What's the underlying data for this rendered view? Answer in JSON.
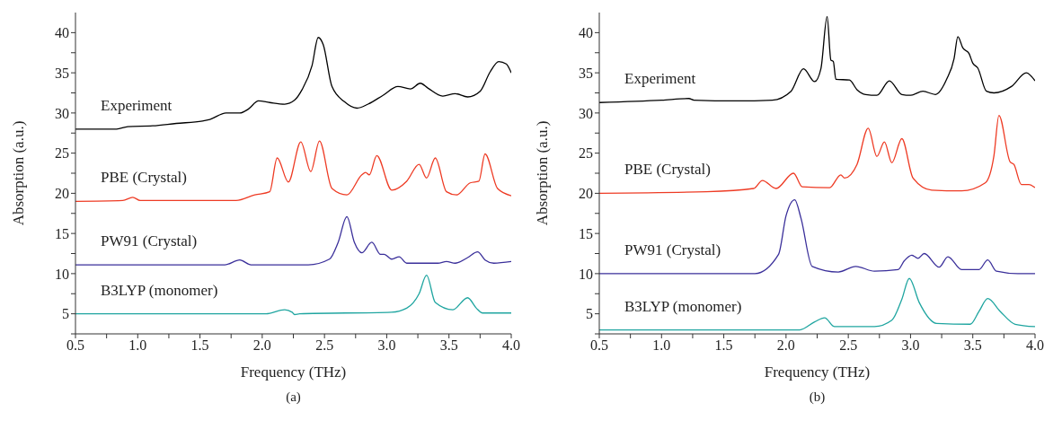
{
  "chart_data": [
    {
      "type": "line",
      "xlabel": "Frequency (THz)",
      "ylabel": "Absorption (a.u.)",
      "annotations": [
        "(a)"
      ],
      "xlim": [
        0.5,
        4.0
      ],
      "xticks": [
        0.5,
        {
          "value": 0.75,
          "label": null
        },
        {
          "value": 1,
          "label": "1.0"
        },
        {
          "value": 1.25,
          "label": null
        },
        1.5,
        {
          "value": 1.75,
          "label": null
        },
        {
          "value": 2,
          "label": "2.0"
        },
        {
          "value": 2.25,
          "label": null
        },
        2.5,
        {
          "value": 2.75,
          "label": null
        },
        {
          "value": 3,
          "label": "3.0"
        },
        {
          "value": 3.25,
          "label": null
        },
        3.5,
        {
          "value": 3.75,
          "label": null
        },
        {
          "value": 4,
          "label": "4.0"
        }
      ],
      "ylim": [
        2.5,
        42.5
      ],
      "yticks": [
        {
          "value": 2.5,
          "label": null
        },
        5,
        {
          "value": 7.5,
          "label": null
        },
        10,
        {
          "value": 12.5,
          "label": null
        },
        15,
        {
          "value": 17.5,
          "label": null
        },
        20,
        {
          "value": 22.5,
          "label": null
        },
        25,
        {
          "value": 27.5,
          "label": null
        },
        30,
        {
          "value": 32.5,
          "label": null
        },
        35,
        {
          "value": 37.5,
          "label": null
        },
        40
      ],
      "series": [
        {
          "name": "Experiment",
          "color": "#000000",
          "x": [
            0.5,
            0.83,
            0.92,
            1.12,
            1.31,
            1.52,
            1.58,
            1.71,
            1.82,
            1.89,
            1.97,
            2.06,
            2.18,
            2.26,
            2.32,
            2.4,
            2.45,
            2.49,
            2.56,
            2.66,
            2.76,
            2.85,
            2.97,
            3.09,
            3.19,
            3.27,
            3.33,
            3.45,
            3.55,
            3.65,
            3.75,
            3.83,
            3.9,
            3.96,
            4.0
          ],
          "values": [
            28.0,
            28.0,
            28.3,
            28.4,
            28.7,
            29.0,
            29.2,
            30.0,
            30.0,
            30.5,
            31.5,
            31.3,
            31.1,
            31.6,
            32.9,
            35.9,
            39.4,
            38.5,
            33.3,
            31.4,
            30.6,
            31.1,
            32.2,
            33.3,
            33.0,
            33.7,
            33.1,
            32.1,
            32.4,
            32.0,
            32.7,
            35.1,
            36.4,
            36.1,
            35.0
          ]
        },
        {
          "name": "PBE (Crystal)",
          "color": "#ee3b24",
          "x": [
            0.5,
            0.88,
            0.96,
            1.02,
            1.79,
            1.94,
            2.06,
            2.12,
            2.21,
            2.31,
            2.39,
            2.46,
            2.56,
            2.68,
            2.8,
            2.83,
            2.86,
            2.92,
            3.04,
            3.16,
            3.26,
            3.32,
            3.39,
            3.48,
            3.56,
            3.67,
            3.74,
            3.79,
            3.89,
            4.0
          ],
          "values": [
            19.0,
            19.1,
            19.5,
            19.1,
            19.1,
            19.8,
            20.2,
            24.4,
            21.4,
            26.4,
            22.7,
            26.5,
            20.6,
            19.8,
            22.3,
            22.6,
            22.3,
            24.7,
            20.4,
            21.5,
            23.6,
            21.9,
            24.4,
            20.2,
            19.8,
            21.3,
            21.5,
            24.9,
            20.6,
            19.7
          ]
        },
        {
          "name": "PW91 (Crystal)",
          "color": "#3a2f9a",
          "x": [
            0.5,
            1.7,
            1.82,
            1.91,
            2.37,
            2.54,
            2.61,
            2.68,
            2.74,
            2.8,
            2.88,
            2.95,
            2.98,
            3.04,
            3.1,
            3.16,
            3.41,
            3.48,
            3.55,
            3.65,
            3.73,
            3.79,
            3.86,
            4.0
          ],
          "values": [
            11.1,
            11.1,
            11.7,
            11.1,
            11.1,
            11.8,
            13.9,
            17.1,
            13.9,
            12.6,
            13.9,
            12.4,
            12.4,
            11.8,
            12.1,
            11.3,
            11.3,
            11.5,
            11.3,
            12.0,
            12.7,
            11.7,
            11.3,
            11.5
          ]
        },
        {
          "name": "B3LYP (monomer)",
          "color": "#1fa5a0",
          "x": [
            0.5,
            2.03,
            2.18,
            2.24,
            2.26,
            2.3,
            3.04,
            3.16,
            3.26,
            3.32,
            3.39,
            3.53,
            3.65,
            3.72,
            3.77,
            4.0
          ],
          "values": [
            5.0,
            5.0,
            5.5,
            5.2,
            4.9,
            5.0,
            5.2,
            5.7,
            7.5,
            9.8,
            6.4,
            5.5,
            7.0,
            5.7,
            5.1,
            5.1
          ]
        }
      ]
    },
    {
      "type": "line",
      "xlabel": "Frequency (THz)",
      "ylabel": "Absorption (a.u.)",
      "annotations": [
        "(b)"
      ],
      "xlim": [
        0.5,
        4.0
      ],
      "xticks": [
        0.5,
        {
          "value": 0.75,
          "label": null
        },
        {
          "value": 1,
          "label": "1.0"
        },
        {
          "value": 1.25,
          "label": null
        },
        1.5,
        {
          "value": 1.75,
          "label": null
        },
        {
          "value": 2,
          "label": "2.0"
        },
        {
          "value": 2.25,
          "label": null
        },
        2.5,
        {
          "value": 2.75,
          "label": null
        },
        {
          "value": 3,
          "label": "3.0"
        },
        {
          "value": 3.25,
          "label": null
        },
        3.5,
        {
          "value": 3.75,
          "label": null
        },
        {
          "value": 4,
          "label": "4.0"
        }
      ],
      "ylim": [
        2.5,
        42.5
      ],
      "yticks": [
        {
          "value": 2.5,
          "label": null
        },
        5,
        {
          "value": 7.5,
          "label": null
        },
        10,
        {
          "value": 12.5,
          "label": null
        },
        15,
        {
          "value": 17.5,
          "label": null
        },
        20,
        {
          "value": 22.5,
          "label": null
        },
        25,
        {
          "value": 27.5,
          "label": null
        },
        30,
        {
          "value": 32.5,
          "label": null
        },
        35,
        {
          "value": 37.5,
          "label": null
        },
        40
      ],
      "series": [
        {
          "name": "Experiment",
          "color": "#000000",
          "x": [
            0.5,
            1.0,
            1.22,
            1.26,
            1.6,
            1.89,
            2.04,
            2.14,
            2.23,
            2.28,
            2.33,
            2.36,
            2.38,
            2.4,
            2.51,
            2.57,
            2.64,
            2.73,
            2.83,
            2.93,
            3.0,
            3.1,
            3.2,
            3.29,
            3.35,
            3.38,
            3.42,
            3.47,
            3.5,
            3.54,
            3.61,
            3.67,
            3.81,
            3.93,
            4.0
          ],
          "values": [
            31.3,
            31.6,
            31.8,
            31.6,
            31.5,
            31.6,
            32.7,
            35.5,
            33.9,
            35.5,
            42.0,
            36.6,
            36.4,
            34.2,
            34.1,
            32.9,
            32.3,
            32.2,
            34.0,
            32.3,
            32.2,
            32.7,
            32.3,
            34.2,
            36.8,
            39.5,
            38.1,
            37.4,
            36.2,
            35.6,
            32.7,
            32.5,
            33.3,
            35.0,
            34.0
          ]
        },
        {
          "name": "PBE (Crystal)",
          "color": "#ee3b24",
          "x": [
            0.5,
            1.36,
            1.74,
            1.81,
            1.92,
            2.06,
            2.13,
            2.35,
            2.44,
            2.47,
            2.57,
            2.66,
            2.73,
            2.79,
            2.85,
            2.93,
            3.02,
            3.17,
            3.41,
            3.6,
            3.67,
            3.71,
            3.8,
            3.83,
            3.89,
            3.95,
            4.0
          ],
          "values": [
            20.0,
            20.2,
            20.6,
            21.6,
            20.6,
            22.5,
            20.8,
            20.7,
            22.3,
            21.9,
            23.6,
            28.1,
            24.6,
            26.4,
            23.8,
            26.8,
            21.9,
            20.4,
            20.3,
            21.3,
            24.7,
            29.7,
            23.9,
            23.6,
            21.1,
            21.1,
            20.7
          ]
        },
        {
          "name": "PW91 (Crystal)",
          "color": "#3a2f9a",
          "x": [
            0.5,
            1.75,
            1.94,
            2.0,
            2.07,
            2.12,
            2.21,
            2.42,
            2.56,
            2.71,
            2.9,
            2.95,
            3.01,
            3.06,
            3.11,
            3.23,
            3.3,
            3.41,
            3.55,
            3.62,
            3.69,
            3.86,
            4.0
          ],
          "values": [
            10.0,
            10.0,
            12.4,
            17.2,
            19.2,
            16.9,
            10.9,
            10.2,
            10.9,
            10.3,
            10.5,
            11.6,
            12.3,
            11.9,
            12.5,
            10.8,
            12.1,
            10.5,
            10.5,
            11.7,
            10.3,
            10.0,
            10.0
          ]
        },
        {
          "name": "B3LYP (monomer)",
          "color": "#1fa5a0",
          "x": [
            0.5,
            2.11,
            2.23,
            2.31,
            2.39,
            2.71,
            2.85,
            2.93,
            2.99,
            3.07,
            3.21,
            3.48,
            3.55,
            3.62,
            3.72,
            3.84,
            4.0
          ],
          "values": [
            3.0,
            3.0,
            4.0,
            4.5,
            3.4,
            3.4,
            4.2,
            6.8,
            9.4,
            6.4,
            3.8,
            3.7,
            5.3,
            6.9,
            5.3,
            3.7,
            3.4
          ]
        }
      ]
    }
  ]
}
